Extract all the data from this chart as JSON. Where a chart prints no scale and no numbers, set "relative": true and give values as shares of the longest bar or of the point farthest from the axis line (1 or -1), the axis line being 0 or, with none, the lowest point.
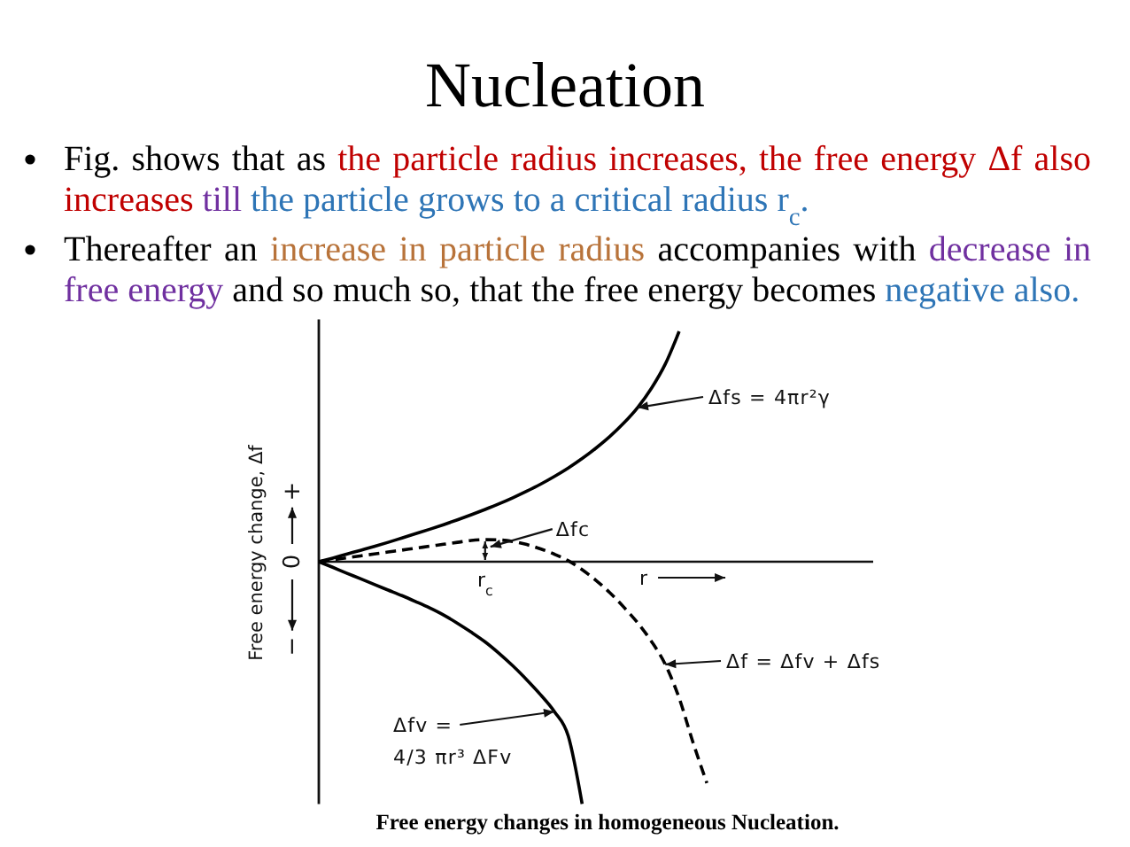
{
  "chart_data": {
    "type": "line",
    "title": "Nucleation",
    "xlabel": "r",
    "ylabel": "Free energy change, Δf",
    "relative": true,
    "annotations": [
      "Fig. shows that as the particle radius increases, the free energy Δf also increases till the particle grows to a critical radius r$_{c}$.",
      "Thereafter an increase in particle radius accompanies with decrease in free energy and so much so, that the free energy becomes negative also.",
      "+",
      "0",
      "−",
      "Δfc",
      "r$_{c}$",
      "Free energy changes in homogeneous Nucleation."
    ],
    "categories": [
      null,
      null,
      null,
      null,
      null,
      null,
      null,
      null,
      null,
      null,
      null,
      null,
      null,
      null,
      null,
      null,
      null,
      null,
      null,
      null,
      null,
      null,
      null,
      null,
      null,
      null,
      null,
      null,
      null,
      null,
      null,
      null,
      null,
      null,
      null,
      null,
      null,
      null,
      null,
      null,
      null
    ],
    "series": [
      {
        "name": "Δfs = 4πr²γ",
        "color": "#000000",
        "line_style": "solid",
        "values": [
          0,
          0.015,
          0.031,
          0.047,
          0.063,
          0.08,
          0.098,
          0.116,
          0.134,
          0.153,
          0.173,
          0.194,
          0.216,
          0.239,
          0.264,
          0.291,
          0.32,
          0.352,
          0.387,
          0.426,
          0.469,
          0.517,
          0.572,
          0.636,
          0.716,
          0.816,
          0.951,
          null,
          null,
          null,
          null,
          null,
          null,
          null,
          null,
          null,
          null,
          null,
          null,
          null,
          null
        ]
      },
      {
        "name": "Δf = Δfv + Δfs",
        "color": "#000000",
        "line_style": "dashed",
        "values": [
          0,
          0.008,
          0.016,
          0.024,
          0.032,
          0.04,
          0.048,
          0.056,
          0.064,
          0.072,
          0.08,
          0.088,
          0.091,
          0.09,
          0.083,
          0.071,
          0.053,
          0.031,
          0.004,
          -0.033,
          -0.077,
          -0.128,
          -0.187,
          -0.252,
          -0.329,
          -0.424,
          -0.563,
          -0.746,
          -0.914,
          null,
          null,
          null,
          null,
          null,
          null,
          null,
          null,
          null,
          null,
          null,
          null
        ]
      },
      {
        "name": "Δfv =\n4/3 πr³ ΔFv",
        "color": "#000000",
        "line_style": "solid",
        "values": [
          0,
          -0.023,
          -0.047,
          -0.07,
          -0.094,
          -0.117,
          -0.14,
          -0.165,
          -0.191,
          -0.22,
          -0.254,
          -0.291,
          -0.331,
          -0.378,
          -0.43,
          -0.487,
          -0.549,
          -0.619,
          -0.72,
          -1,
          null,
          null,
          null,
          null,
          null,
          null,
          null,
          null,
          null,
          null,
          null,
          null,
          null,
          null,
          null,
          null,
          null,
          null,
          null,
          null,
          null
        ]
      }
    ]
  }
}
